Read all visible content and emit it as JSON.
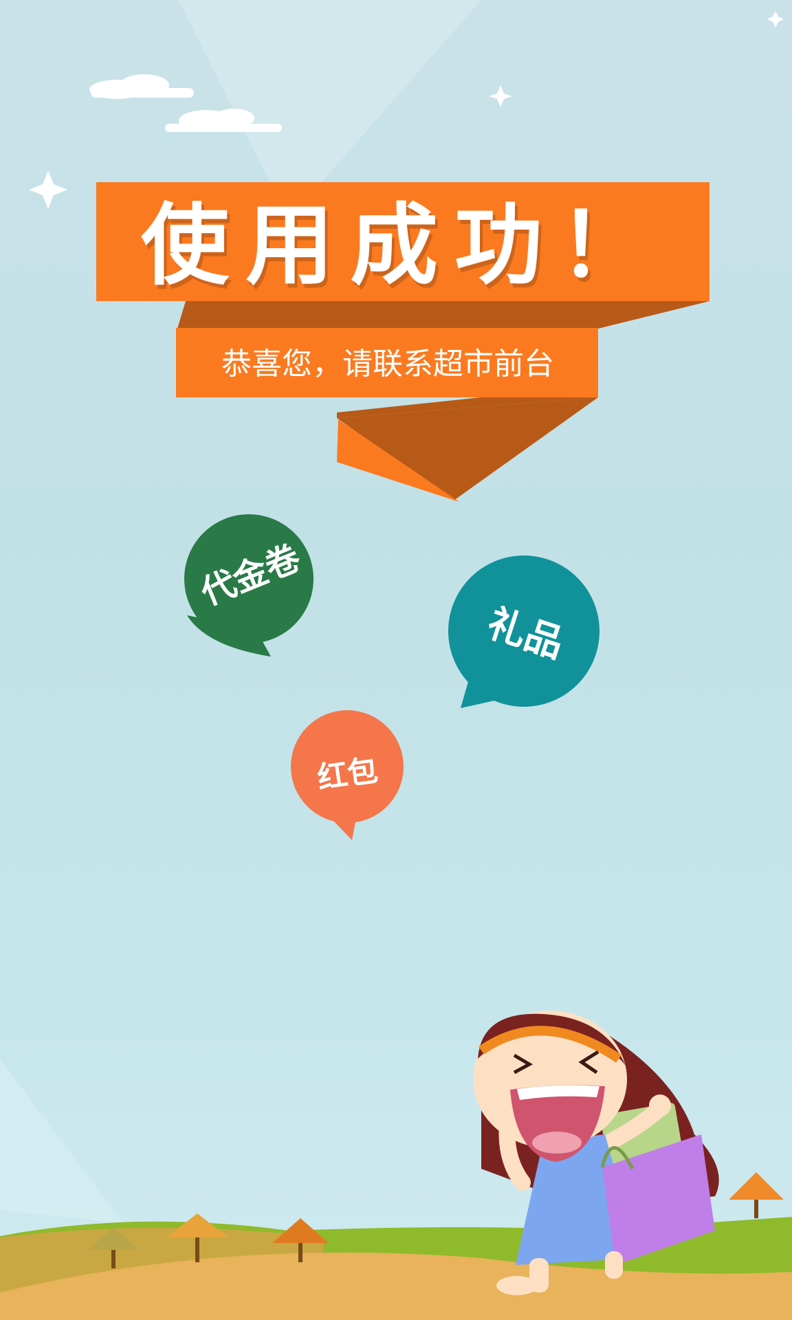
{
  "banner": {
    "title": "使用成功！",
    "subtitle": "恭喜您，请联系超市前台"
  },
  "bubbles": [
    {
      "label": "代金卷",
      "color": "#2a7a48"
    },
    {
      "label": "礼品",
      "color": "#11929a"
    },
    {
      "label": "红包",
      "color": "#f5764a"
    }
  ],
  "colors": {
    "ribbon": "#fb7a1f",
    "ribbon_fold": "#b75a17",
    "sky": "#c5e3e9",
    "hill_green": "#8fba2c",
    "hill_sand": "#e8b35a"
  }
}
